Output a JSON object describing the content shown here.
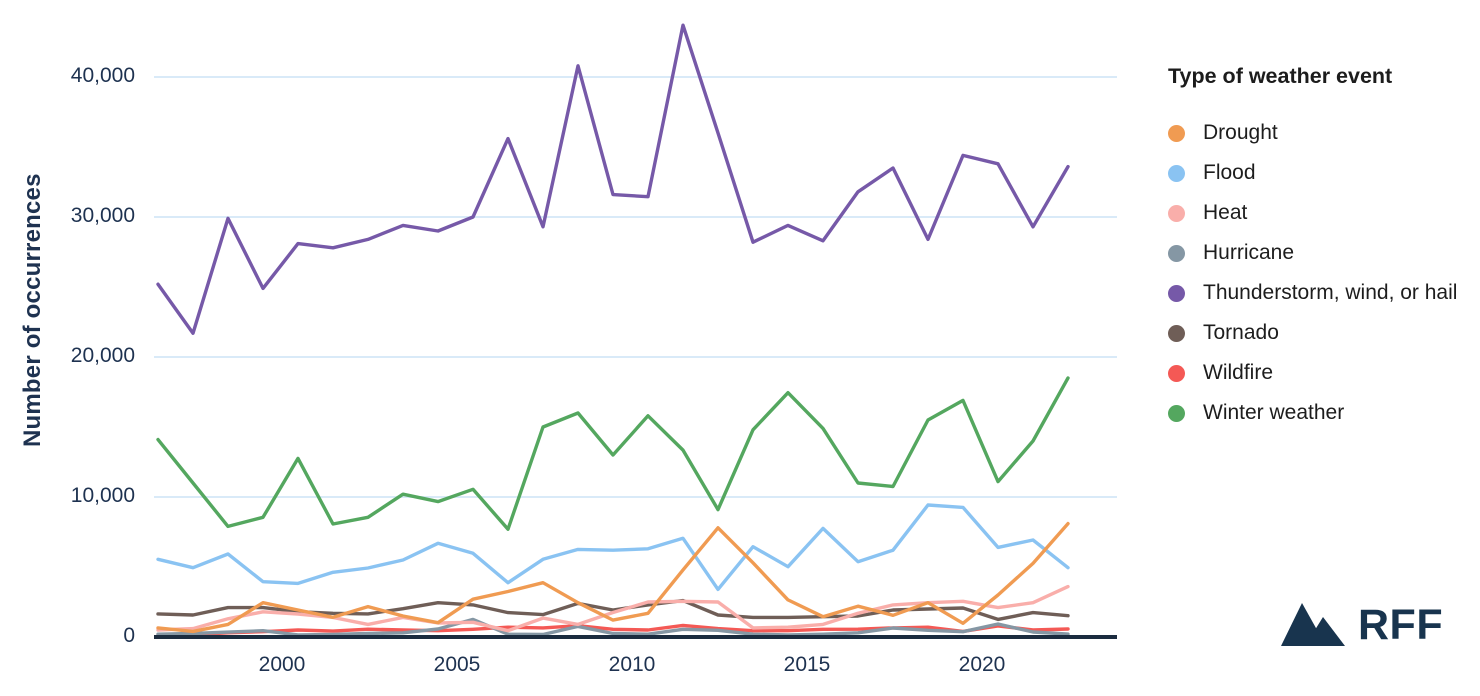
{
  "y_axis": {
    "title": "Number of occurrences",
    "tick_labels": [
      "40,000",
      "30,000",
      "20,000",
      "10,000",
      "0"
    ],
    "tick_values": [
      40000,
      30000,
      20000,
      10000,
      0
    ]
  },
  "x_axis": {
    "tick_labels": [
      "2000",
      "2005",
      "2010",
      "2015",
      "2020"
    ],
    "tick_values": [
      2000,
      2005,
      2010,
      2015,
      2020
    ]
  },
  "legend": {
    "title": "Type of weather event",
    "items": [
      {
        "label": "Drought",
        "color": "#F09B52"
      },
      {
        "label": "Flood",
        "color": "#8AC3F2"
      },
      {
        "label": "Heat",
        "color": "#F9AEAA"
      },
      {
        "label": "Hurricane",
        "color": "#8597A4"
      },
      {
        "label": "Thunderstorm, wind, or hail",
        "color": "#7659A8"
      },
      {
        "label": "Tornado",
        "color": "#6F5E57"
      },
      {
        "label": "Wildfire",
        "color": "#F45955"
      },
      {
        "label": "Winter weather",
        "color": "#54A75F"
      }
    ]
  },
  "branding": {
    "logo_text": "RFF",
    "logo_color": "#18344e",
    "logo_icon": "mountains-icon"
  },
  "style": {
    "grid_color": "#D9EAF8",
    "axis_color": "#1B2C3F",
    "text_color": "#1e3250"
  },
  "chart_data": {
    "type": "line",
    "title": "",
    "xlabel": "",
    "ylabel": "Number of occurrences",
    "x": [
      1996,
      1997,
      1998,
      1999,
      2000,
      2001,
      2002,
      2003,
      2004,
      2005,
      2006,
      2007,
      2008,
      2009,
      2010,
      2011,
      2012,
      2013,
      2014,
      2015,
      2016,
      2017,
      2018,
      2019,
      2020,
      2021,
      2022
    ],
    "ylim": [
      0,
      44800
    ],
    "grid": "horizontal",
    "legend_position": "right",
    "series": [
      {
        "name": "Drought",
        "color": "#F09B52",
        "values": [
          650,
          400,
          900,
          2450,
          1930,
          1410,
          2170,
          1500,
          1020,
          2700,
          3250,
          3880,
          2450,
          1210,
          1690,
          4790,
          7800,
          5300,
          2650,
          1450,
          2200,
          1550,
          2450,
          980,
          3000,
          5260,
          8100
        ]
      },
      {
        "name": "Flood",
        "color": "#8AC3F2",
        "values": [
          5550,
          4950,
          5930,
          3950,
          3830,
          4620,
          4930,
          5500,
          6690,
          5980,
          3880,
          5550,
          6260,
          6200,
          6300,
          7050,
          3400,
          6450,
          5020,
          7760,
          5380,
          6200,
          9430,
          9260,
          6400,
          6930,
          4950
        ]
      },
      {
        "name": "Heat",
        "color": "#F9AEAA",
        "values": [
          500,
          600,
          1300,
          1800,
          1640,
          1400,
          900,
          1400,
          1000,
          1050,
          450,
          1350,
          900,
          1750,
          2500,
          2550,
          2500,
          650,
          700,
          900,
          1690,
          2290,
          2450,
          2550,
          2100,
          2450,
          3600
        ]
      },
      {
        "name": "Hurricane",
        "color": "#8597A4",
        "values": [
          200,
          250,
          350,
          450,
          150,
          180,
          250,
          300,
          570,
          1260,
          200,
          180,
          760,
          250,
          200,
          550,
          480,
          200,
          150,
          200,
          300,
          640,
          480,
          380,
          930,
          360,
          210
        ]
      },
      {
        "name": "Thunderstorm, wind, or hail",
        "color": "#7659A8",
        "values": [
          25200,
          21700,
          29900,
          24900,
          28100,
          27800,
          28400,
          29400,
          29000,
          30000,
          35600,
          29300,
          40800,
          31600,
          31450,
          43700,
          36000,
          28200,
          29400,
          28300,
          31800,
          33500,
          28400,
          34400,
          33800,
          29300,
          33600
        ]
      },
      {
        "name": "Tornado",
        "color": "#6F5E57",
        "values": [
          1650,
          1570,
          2100,
          2100,
          1810,
          1690,
          1650,
          2020,
          2450,
          2290,
          1740,
          1600,
          2400,
          1930,
          2290,
          2600,
          1570,
          1400,
          1400,
          1450,
          1500,
          1930,
          2000,
          2070,
          1260,
          1740,
          1520
        ]
      },
      {
        "name": "Wildfire",
        "color": "#F45955",
        "values": [
          120,
          160,
          300,
          380,
          500,
          420,
          560,
          500,
          450,
          550,
          700,
          650,
          810,
          550,
          500,
          830,
          600,
          450,
          450,
          550,
          560,
          650,
          700,
          400,
          790,
          500,
          570
        ]
      },
      {
        "name": "Winter weather",
        "color": "#54A75F",
        "values": [
          14100,
          11000,
          7900,
          8550,
          12760,
          8070,
          8550,
          10200,
          9670,
          10550,
          7700,
          15000,
          16000,
          13000,
          15800,
          13350,
          9100,
          14800,
          17450,
          14900,
          11000,
          10750,
          15500,
          16900,
          11100,
          14000,
          18500
        ]
      }
    ]
  }
}
